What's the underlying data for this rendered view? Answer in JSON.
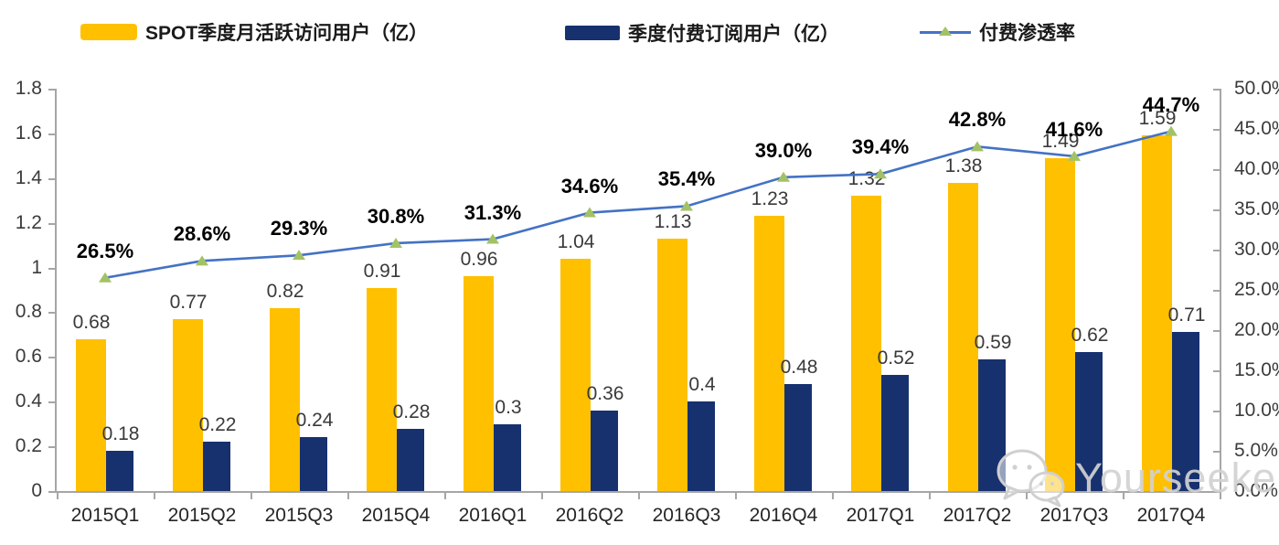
{
  "legend": [
    {
      "label": "SPOT季度月活跃访问用户（亿）",
      "type": "bar",
      "color": "#FFC000"
    },
    {
      "label": "季度付费订阅用户（亿）",
      "type": "bar",
      "color": "#17316F"
    },
    {
      "label": "付费渗透率",
      "type": "line",
      "color": "#4472C4",
      "marker_color": "#A3C266"
    }
  ],
  "watermark": {
    "text": "Yourseeker",
    "icon": "wechat-icon"
  },
  "chart_data": {
    "type": "bar+line",
    "title": "",
    "categories": [
      "2015Q1",
      "2015Q2",
      "2015Q3",
      "2015Q4",
      "2016Q1",
      "2016Q2",
      "2016Q3",
      "2016Q4",
      "2017Q1",
      "2017Q2",
      "2017Q3",
      "2017Q4"
    ],
    "series": [
      {
        "name": "SPOT季度月活跃访问用户（亿）",
        "type": "bar",
        "axis": "left",
        "color": "#FFC000",
        "values": [
          0.68,
          0.77,
          0.82,
          0.91,
          0.96,
          1.04,
          1.13,
          1.23,
          1.32,
          1.38,
          1.49,
          1.59
        ],
        "labels": [
          "0.68",
          "0.77",
          "0.82",
          "0.91",
          "0.96",
          "1.04",
          "1.13",
          "1.23",
          "1.32",
          "1.38",
          "1.49",
          "1.59"
        ]
      },
      {
        "name": "季度付费订阅用户（亿）",
        "type": "bar",
        "axis": "left",
        "color": "#17316F",
        "values": [
          0.18,
          0.22,
          0.24,
          0.28,
          0.3,
          0.36,
          0.4,
          0.48,
          0.52,
          0.59,
          0.62,
          0.71
        ],
        "labels": [
          "0.18",
          "0.22",
          "0.24",
          "0.28",
          "0.3",
          "0.36",
          "0.4",
          "0.48",
          "0.52",
          "0.59",
          "0.62",
          "0.71"
        ]
      },
      {
        "name": "付费渗透率",
        "type": "line",
        "axis": "right",
        "color": "#4472C4",
        "marker": "triangle",
        "marker_color": "#A3C266",
        "values": [
          26.5,
          28.6,
          29.3,
          30.8,
          31.3,
          34.6,
          35.4,
          39.0,
          39.4,
          42.8,
          41.6,
          44.7
        ],
        "labels": [
          "26.5%",
          "28.6%",
          "29.3%",
          "30.8%",
          "31.3%",
          "34.6%",
          "35.4%",
          "39.0%",
          "39.4%",
          "42.8%",
          "41.6%",
          "44.7%"
        ]
      }
    ],
    "left_axis": {
      "min": 0,
      "max": 1.8,
      "step": 0.2,
      "ticks_top_down": [
        "1.8",
        "1.6",
        "1.4",
        "1.2",
        "1",
        "0.8",
        "0.6",
        "0.4",
        "0.2",
        "0"
      ]
    },
    "right_axis": {
      "min": 0,
      "max": 50,
      "step": 5,
      "ticks_top_down": [
        "50.0%",
        "45.0%",
        "40.0%",
        "35.0%",
        "30.0%",
        "25.0%",
        "20.0%",
        "15.0%",
        "10.0%",
        "5.0%",
        "0.0%"
      ]
    },
    "grid": false,
    "legend_position": "top",
    "axis_color": "#a6a6a6"
  }
}
